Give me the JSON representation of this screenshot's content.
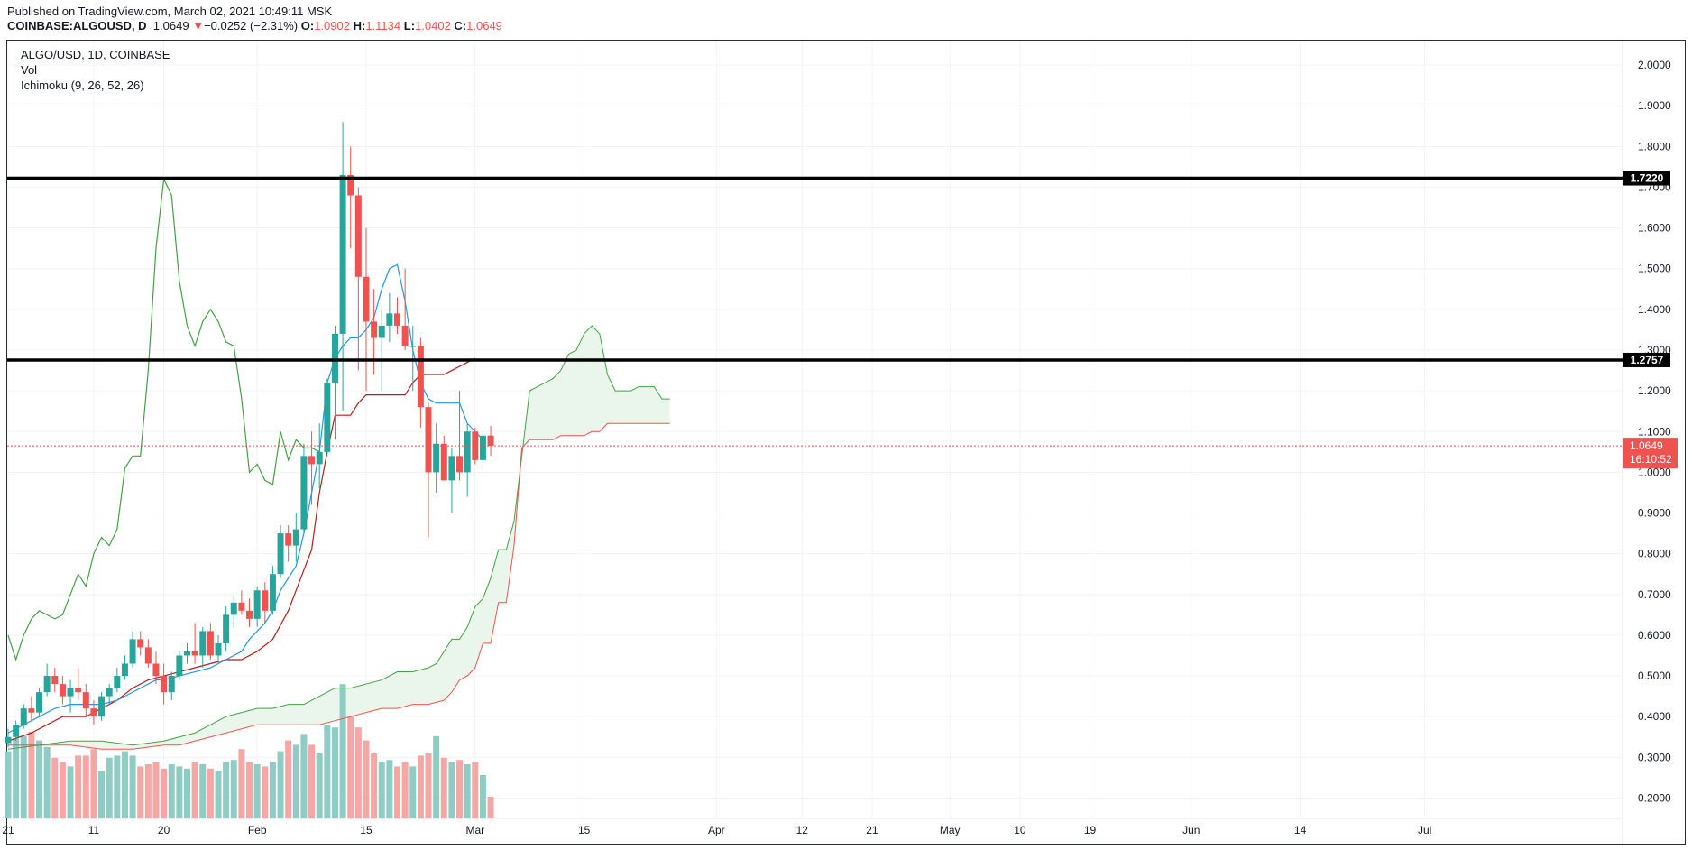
{
  "header": {
    "published": "Published on TradingView.com, March 02, 2021 10:49:11 MSK",
    "symbol": "COINBASE:ALGOUSD, D",
    "last": "1.0649",
    "change_arrow": "▼",
    "change": "−0.0252 (−2.31%)",
    "o_label": "O:",
    "o_value": "1.0902",
    "h_label": "H:",
    "h_value": "1.1134",
    "l_label": "L:",
    "l_value": "1.0402",
    "c_label": "C:",
    "c_value": "1.0649"
  },
  "legend": {
    "title": "ALGO/USD, 1D, COINBASE",
    "vol": "Vol",
    "ichimoku": "Ichimoku (9, 26, 52, 26)"
  },
  "colors": {
    "up": "#26a69a",
    "down": "#ef5350",
    "vol_up": "#8fccc4",
    "vol_down": "#f4a7a5",
    "tenkan": "#2196f3",
    "kijun": "#b71c1c",
    "chikou": "#43a047",
    "span_a": "#43a047",
    "span_b": "#ef5350",
    "cloud_fill": "#e8f5e9",
    "hline": "#000000",
    "grid": "#f0f3fa"
  },
  "chart_data": {
    "type": "candlestick",
    "interval": "1D",
    "start_date": "2021-01-21",
    "y_axis": {
      "min": 0.15,
      "max": 2.06,
      "ticks": [
        "2.0000",
        "1.9000",
        "1.8000",
        "1.7000",
        "1.6000",
        "1.5000",
        "1.4000",
        "1.3000",
        "1.2000",
        "1.1000",
        "1.0000",
        "0.9000",
        "0.8000",
        "0.7000",
        "0.6000",
        "0.5000",
        "0.4000",
        "0.3000",
        "0.2000"
      ]
    },
    "x_ticks": [
      {
        "day": 0,
        "label": "21"
      },
      {
        "day": 11,
        "label": "11"
      },
      {
        "day": 20,
        "label": "20"
      },
      {
        "day": 32,
        "label": "Feb"
      },
      {
        "day": 46,
        "label": "15"
      },
      {
        "day": 60,
        "label": "Mar"
      },
      {
        "day": 74,
        "label": "15"
      },
      {
        "day": 91,
        "label": "Apr"
      },
      {
        "day": 102,
        "label": "12"
      },
      {
        "day": 111,
        "label": "21"
      },
      {
        "day": 121,
        "label": "May"
      },
      {
        "day": 130,
        "label": "10"
      },
      {
        "day": 139,
        "label": "19"
      },
      {
        "day": 152,
        "label": "Jun"
      },
      {
        "day": 166,
        "label": "14"
      },
      {
        "day": 182,
        "label": "Jul"
      }
    ],
    "horizontal_lines": [
      {
        "value": 1.722,
        "label": "1.7220"
      },
      {
        "value": 1.2757,
        "label": "1.2757"
      }
    ],
    "last_price": {
      "value": 1.0649,
      "label": "1.0649",
      "countdown": "16:10:52"
    },
    "candles": [
      {
        "o": 0.335,
        "h": 0.37,
        "l": 0.325,
        "c": 0.35
      },
      {
        "o": 0.35,
        "h": 0.39,
        "l": 0.34,
        "c": 0.38
      },
      {
        "o": 0.38,
        "h": 0.43,
        "l": 0.37,
        "c": 0.42
      },
      {
        "o": 0.42,
        "h": 0.45,
        "l": 0.39,
        "c": 0.41
      },
      {
        "o": 0.41,
        "h": 0.47,
        "l": 0.4,
        "c": 0.46
      },
      {
        "o": 0.46,
        "h": 0.53,
        "l": 0.45,
        "c": 0.5
      },
      {
        "o": 0.5,
        "h": 0.52,
        "l": 0.46,
        "c": 0.48
      },
      {
        "o": 0.48,
        "h": 0.5,
        "l": 0.43,
        "c": 0.45
      },
      {
        "o": 0.45,
        "h": 0.49,
        "l": 0.41,
        "c": 0.47
      },
      {
        "o": 0.47,
        "h": 0.52,
        "l": 0.44,
        "c": 0.46
      },
      {
        "o": 0.46,
        "h": 0.48,
        "l": 0.4,
        "c": 0.42
      },
      {
        "o": 0.42,
        "h": 0.44,
        "l": 0.38,
        "c": 0.4
      },
      {
        "o": 0.4,
        "h": 0.46,
        "l": 0.39,
        "c": 0.45
      },
      {
        "o": 0.45,
        "h": 0.48,
        "l": 0.43,
        "c": 0.47
      },
      {
        "o": 0.47,
        "h": 0.52,
        "l": 0.46,
        "c": 0.5
      },
      {
        "o": 0.5,
        "h": 0.55,
        "l": 0.49,
        "c": 0.53
      },
      {
        "o": 0.53,
        "h": 0.61,
        "l": 0.52,
        "c": 0.59
      },
      {
        "o": 0.59,
        "h": 0.61,
        "l": 0.55,
        "c": 0.57
      },
      {
        "o": 0.57,
        "h": 0.59,
        "l": 0.52,
        "c": 0.53
      },
      {
        "o": 0.53,
        "h": 0.56,
        "l": 0.48,
        "c": 0.5
      },
      {
        "o": 0.5,
        "h": 0.53,
        "l": 0.43,
        "c": 0.46
      },
      {
        "o": 0.46,
        "h": 0.51,
        "l": 0.44,
        "c": 0.5
      },
      {
        "o": 0.5,
        "h": 0.56,
        "l": 0.49,
        "c": 0.55
      },
      {
        "o": 0.55,
        "h": 0.58,
        "l": 0.53,
        "c": 0.56
      },
      {
        "o": 0.56,
        "h": 0.63,
        "l": 0.53,
        "c": 0.55
      },
      {
        "o": 0.55,
        "h": 0.62,
        "l": 0.52,
        "c": 0.61
      },
      {
        "o": 0.61,
        "h": 0.63,
        "l": 0.54,
        "c": 0.55
      },
      {
        "o": 0.55,
        "h": 0.6,
        "l": 0.53,
        "c": 0.58
      },
      {
        "o": 0.58,
        "h": 0.67,
        "l": 0.56,
        "c": 0.65
      },
      {
        "o": 0.65,
        "h": 0.7,
        "l": 0.62,
        "c": 0.68
      },
      {
        "o": 0.68,
        "h": 0.71,
        "l": 0.65,
        "c": 0.66
      },
      {
        "o": 0.66,
        "h": 0.69,
        "l": 0.62,
        "c": 0.64
      },
      {
        "o": 0.64,
        "h": 0.72,
        "l": 0.62,
        "c": 0.71
      },
      {
        "o": 0.71,
        "h": 0.73,
        "l": 0.63,
        "c": 0.66
      },
      {
        "o": 0.66,
        "h": 0.77,
        "l": 0.65,
        "c": 0.75
      },
      {
        "o": 0.75,
        "h": 0.87,
        "l": 0.74,
        "c": 0.85
      },
      {
        "o": 0.85,
        "h": 0.87,
        "l": 0.78,
        "c": 0.82
      },
      {
        "o": 0.82,
        "h": 0.9,
        "l": 0.78,
        "c": 0.86
      },
      {
        "o": 0.86,
        "h": 1.07,
        "l": 0.85,
        "c": 1.04
      },
      {
        "o": 1.04,
        "h": 1.1,
        "l": 0.92,
        "c": 1.02
      },
      {
        "o": 1.02,
        "h": 1.12,
        "l": 0.96,
        "c": 1.05
      },
      {
        "o": 1.05,
        "h": 1.23,
        "l": 1.04,
        "c": 1.22
      },
      {
        "o": 1.22,
        "h": 1.36,
        "l": 1.08,
        "c": 1.34
      },
      {
        "o": 1.34,
        "h": 1.86,
        "l": 1.15,
        "c": 1.73
      },
      {
        "o": 1.73,
        "h": 1.8,
        "l": 1.55,
        "c": 1.68
      },
      {
        "o": 1.68,
        "h": 1.7,
        "l": 1.25,
        "c": 1.48
      },
      {
        "o": 1.48,
        "h": 1.6,
        "l": 1.2,
        "c": 1.37
      },
      {
        "o": 1.37,
        "h": 1.45,
        "l": 1.24,
        "c": 1.33
      },
      {
        "o": 1.33,
        "h": 1.4,
        "l": 1.2,
        "c": 1.36
      },
      {
        "o": 1.36,
        "h": 1.44,
        "l": 1.32,
        "c": 1.39
      },
      {
        "o": 1.39,
        "h": 1.43,
        "l": 1.34,
        "c": 1.36
      },
      {
        "o": 1.36,
        "h": 1.5,
        "l": 1.3,
        "c": 1.31
      },
      {
        "o": 1.31,
        "h": 1.36,
        "l": 1.2,
        "c": 1.31
      },
      {
        "o": 1.31,
        "h": 1.33,
        "l": 1.11,
        "c": 1.16
      },
      {
        "o": 1.16,
        "h": 1.17,
        "l": 0.84,
        "c": 1.0
      },
      {
        "o": 1.0,
        "h": 1.12,
        "l": 0.95,
        "c": 1.07
      },
      {
        "o": 1.07,
        "h": 1.09,
        "l": 0.98,
        "c": 0.98
      },
      {
        "o": 0.98,
        "h": 1.06,
        "l": 0.9,
        "c": 1.04
      },
      {
        "o": 1.04,
        "h": 1.2,
        "l": 0.98,
        "c": 1.0
      },
      {
        "o": 1.0,
        "h": 1.12,
        "l": 0.94,
        "c": 1.1
      },
      {
        "o": 1.1,
        "h": 1.11,
        "l": 1.02,
        "c": 1.03
      },
      {
        "o": 1.03,
        "h": 1.1,
        "l": 1.01,
        "c": 1.09
      },
      {
        "o": 1.0902,
        "h": 1.1134,
        "l": 1.0402,
        "c": 1.0649
      }
    ],
    "volume": [
      310,
      370,
      380,
      400,
      360,
      330,
      280,
      260,
      240,
      290,
      290,
      320,
      220,
      280,
      290,
      310,
      290,
      240,
      250,
      260,
      230,
      250,
      240,
      230,
      260,
      250,
      230,
      220,
      260,
      270,
      320,
      260,
      250,
      240,
      260,
      310,
      360,
      340,
      390,
      340,
      300,
      430,
      420,
      620,
      470,
      420,
      360,
      300,
      260,
      270,
      240,
      260,
      240,
      290,
      300,
      380,
      280,
      260,
      270,
      250,
      260,
      200,
      100
    ],
    "tenkan": [
      [
        0,
        0.36
      ],
      [
        2,
        0.38
      ],
      [
        4,
        0.4
      ],
      [
        6,
        0.42
      ],
      [
        8,
        0.43
      ],
      [
        10,
        0.43
      ],
      [
        12,
        0.43
      ],
      [
        14,
        0.44
      ],
      [
        16,
        0.46
      ],
      [
        18,
        0.48
      ],
      [
        19,
        0.49
      ],
      [
        20,
        0.49
      ],
      [
        22,
        0.5
      ],
      [
        24,
        0.51
      ],
      [
        26,
        0.52
      ],
      [
        28,
        0.54
      ],
      [
        30,
        0.56
      ],
      [
        31,
        0.59
      ],
      [
        32,
        0.61
      ],
      [
        33,
        0.63
      ],
      [
        34,
        0.66
      ],
      [
        35,
        0.71
      ],
      [
        36,
        0.74
      ],
      [
        37,
        0.77
      ],
      [
        38,
        0.85
      ],
      [
        39,
        0.95
      ],
      [
        40,
        1.05
      ],
      [
        41,
        1.22
      ],
      [
        42,
        1.28
      ],
      [
        43,
        1.31
      ],
      [
        44,
        1.33
      ],
      [
        45,
        1.33
      ],
      [
        46,
        1.35
      ],
      [
        47,
        1.38
      ],
      [
        48,
        1.45
      ],
      [
        49,
        1.5
      ],
      [
        50,
        1.51
      ],
      [
        51,
        1.42
      ],
      [
        52,
        1.3
      ],
      [
        53,
        1.22
      ],
      [
        54,
        1.18
      ],
      [
        55,
        1.17
      ],
      [
        56,
        1.17
      ],
      [
        57,
        1.17
      ],
      [
        58,
        1.17
      ],
      [
        59,
        1.12
      ],
      [
        60,
        1.1
      ],
      [
        61,
        1.08
      ]
    ],
    "kijun": [
      [
        0,
        0.34
      ],
      [
        3,
        0.36
      ],
      [
        5,
        0.38
      ],
      [
        7,
        0.4
      ],
      [
        10,
        0.4
      ],
      [
        12,
        0.42
      ],
      [
        14,
        0.44
      ],
      [
        16,
        0.47
      ],
      [
        18,
        0.49
      ],
      [
        20,
        0.5
      ],
      [
        22,
        0.51
      ],
      [
        24,
        0.52
      ],
      [
        26,
        0.53
      ],
      [
        28,
        0.54
      ],
      [
        30,
        0.54
      ],
      [
        32,
        0.56
      ],
      [
        34,
        0.59
      ],
      [
        36,
        0.66
      ],
      [
        38,
        0.76
      ],
      [
        39,
        0.81
      ],
      [
        40,
        0.95
      ],
      [
        41,
        1.05
      ],
      [
        42,
        1.14
      ],
      [
        43,
        1.14
      ],
      [
        44,
        1.14
      ],
      [
        45,
        1.17
      ],
      [
        46,
        1.19
      ],
      [
        47,
        1.19
      ],
      [
        48,
        1.19
      ],
      [
        49,
        1.19
      ],
      [
        50,
        1.19
      ],
      [
        51,
        1.19
      ],
      [
        52,
        1.22
      ],
      [
        53,
        1.24
      ],
      [
        54,
        1.24
      ],
      [
        55,
        1.24
      ],
      [
        56,
        1.24
      ],
      [
        57,
        1.25
      ],
      [
        58,
        1.26
      ],
      [
        59,
        1.27
      ],
      [
        60,
        1.28
      ]
    ],
    "chikou": [
      [
        0,
        0.6
      ],
      [
        1,
        0.54
      ],
      [
        2,
        0.6
      ],
      [
        3,
        0.64
      ],
      [
        4,
        0.66
      ],
      [
        5,
        0.65
      ],
      [
        6,
        0.64
      ],
      [
        7,
        0.65
      ],
      [
        8,
        0.7
      ],
      [
        9,
        0.75
      ],
      [
        10,
        0.72
      ],
      [
        11,
        0.8
      ],
      [
        12,
        0.84
      ],
      [
        13,
        0.82
      ],
      [
        14,
        0.86
      ],
      [
        15,
        1.01
      ],
      [
        16,
        1.04
      ],
      [
        17,
        1.04
      ],
      [
        18,
        1.25
      ],
      [
        19,
        1.55
      ],
      [
        20,
        1.72
      ],
      [
        21,
        1.68
      ],
      [
        22,
        1.47
      ],
      [
        23,
        1.36
      ],
      [
        24,
        1.31
      ],
      [
        25,
        1.37
      ],
      [
        26,
        1.4
      ],
      [
        27,
        1.37
      ],
      [
        28,
        1.32
      ],
      [
        29,
        1.31
      ],
      [
        30,
        1.18
      ],
      [
        31,
        1.0
      ],
      [
        32,
        1.02
      ],
      [
        33,
        0.98
      ],
      [
        34,
        0.97
      ],
      [
        35,
        1.1
      ],
      [
        36,
        1.03
      ],
      [
        37,
        1.08
      ],
      [
        38,
        1.06
      ],
      [
        39,
        1.06
      ],
      [
        40,
        1.05
      ]
    ],
    "span_a": [
      [
        0,
        0.32
      ],
      [
        4,
        0.33
      ],
      [
        8,
        0.34
      ],
      [
        12,
        0.34
      ],
      [
        16,
        0.33
      ],
      [
        20,
        0.34
      ],
      [
        22,
        0.35
      ],
      [
        24,
        0.36
      ],
      [
        26,
        0.38
      ],
      [
        28,
        0.4
      ],
      [
        30,
        0.41
      ],
      [
        32,
        0.42
      ],
      [
        34,
        0.42
      ],
      [
        36,
        0.43
      ],
      [
        38,
        0.43
      ],
      [
        40,
        0.45
      ],
      [
        42,
        0.47
      ],
      [
        44,
        0.47
      ],
      [
        46,
        0.48
      ],
      [
        48,
        0.49
      ],
      [
        50,
        0.51
      ],
      [
        52,
        0.51
      ],
      [
        54,
        0.52
      ],
      [
        55,
        0.53
      ],
      [
        56,
        0.56
      ],
      [
        57,
        0.59
      ],
      [
        58,
        0.59
      ],
      [
        59,
        0.62
      ],
      [
        60,
        0.67
      ],
      [
        61,
        0.69
      ],
      [
        62,
        0.74
      ],
      [
        63,
        0.81
      ],
      [
        64,
        0.81
      ],
      [
        65,
        0.88
      ],
      [
        66,
        1.04
      ],
      [
        67,
        1.2
      ],
      [
        68,
        1.21
      ],
      [
        69,
        1.22
      ],
      [
        70,
        1.23
      ],
      [
        71,
        1.25
      ],
      [
        72,
        1.29
      ],
      [
        73,
        1.3
      ],
      [
        74,
        1.34
      ],
      [
        75,
        1.36
      ],
      [
        76,
        1.34
      ],
      [
        77,
        1.24
      ],
      [
        78,
        1.2
      ],
      [
        79,
        1.2
      ],
      [
        80,
        1.2
      ],
      [
        81,
        1.21
      ],
      [
        82,
        1.21
      ],
      [
        83,
        1.21
      ],
      [
        84,
        1.18
      ],
      [
        85,
        1.18
      ]
    ],
    "span_b": [
      [
        0,
        0.33
      ],
      [
        4,
        0.33
      ],
      [
        8,
        0.33
      ],
      [
        12,
        0.32
      ],
      [
        16,
        0.32
      ],
      [
        20,
        0.33
      ],
      [
        22,
        0.33
      ],
      [
        24,
        0.34
      ],
      [
        26,
        0.35
      ],
      [
        28,
        0.36
      ],
      [
        30,
        0.37
      ],
      [
        32,
        0.38
      ],
      [
        34,
        0.38
      ],
      [
        36,
        0.38
      ],
      [
        38,
        0.38
      ],
      [
        40,
        0.38
      ],
      [
        42,
        0.39
      ],
      [
        44,
        0.4
      ],
      [
        46,
        0.41
      ],
      [
        48,
        0.42
      ],
      [
        50,
        0.42
      ],
      [
        52,
        0.43
      ],
      [
        54,
        0.43
      ],
      [
        56,
        0.44
      ],
      [
        57,
        0.46
      ],
      [
        58,
        0.49
      ],
      [
        59,
        0.5
      ],
      [
        60,
        0.52
      ],
      [
        61,
        0.58
      ],
      [
        62,
        0.58
      ],
      [
        63,
        0.68
      ],
      [
        64,
        0.68
      ],
      [
        65,
        0.82
      ],
      [
        66,
        1.06
      ],
      [
        67,
        1.08
      ],
      [
        68,
        1.08
      ],
      [
        69,
        1.08
      ],
      [
        70,
        1.08
      ],
      [
        71,
        1.09
      ],
      [
        72,
        1.09
      ],
      [
        73,
        1.09
      ],
      [
        74,
        1.09
      ],
      [
        75,
        1.1
      ],
      [
        76,
        1.1
      ],
      [
        77,
        1.12
      ],
      [
        78,
        1.12
      ],
      [
        79,
        1.12
      ],
      [
        80,
        1.12
      ],
      [
        81,
        1.12
      ],
      [
        82,
        1.12
      ],
      [
        83,
        1.12
      ],
      [
        84,
        1.12
      ],
      [
        85,
        1.12
      ]
    ]
  }
}
